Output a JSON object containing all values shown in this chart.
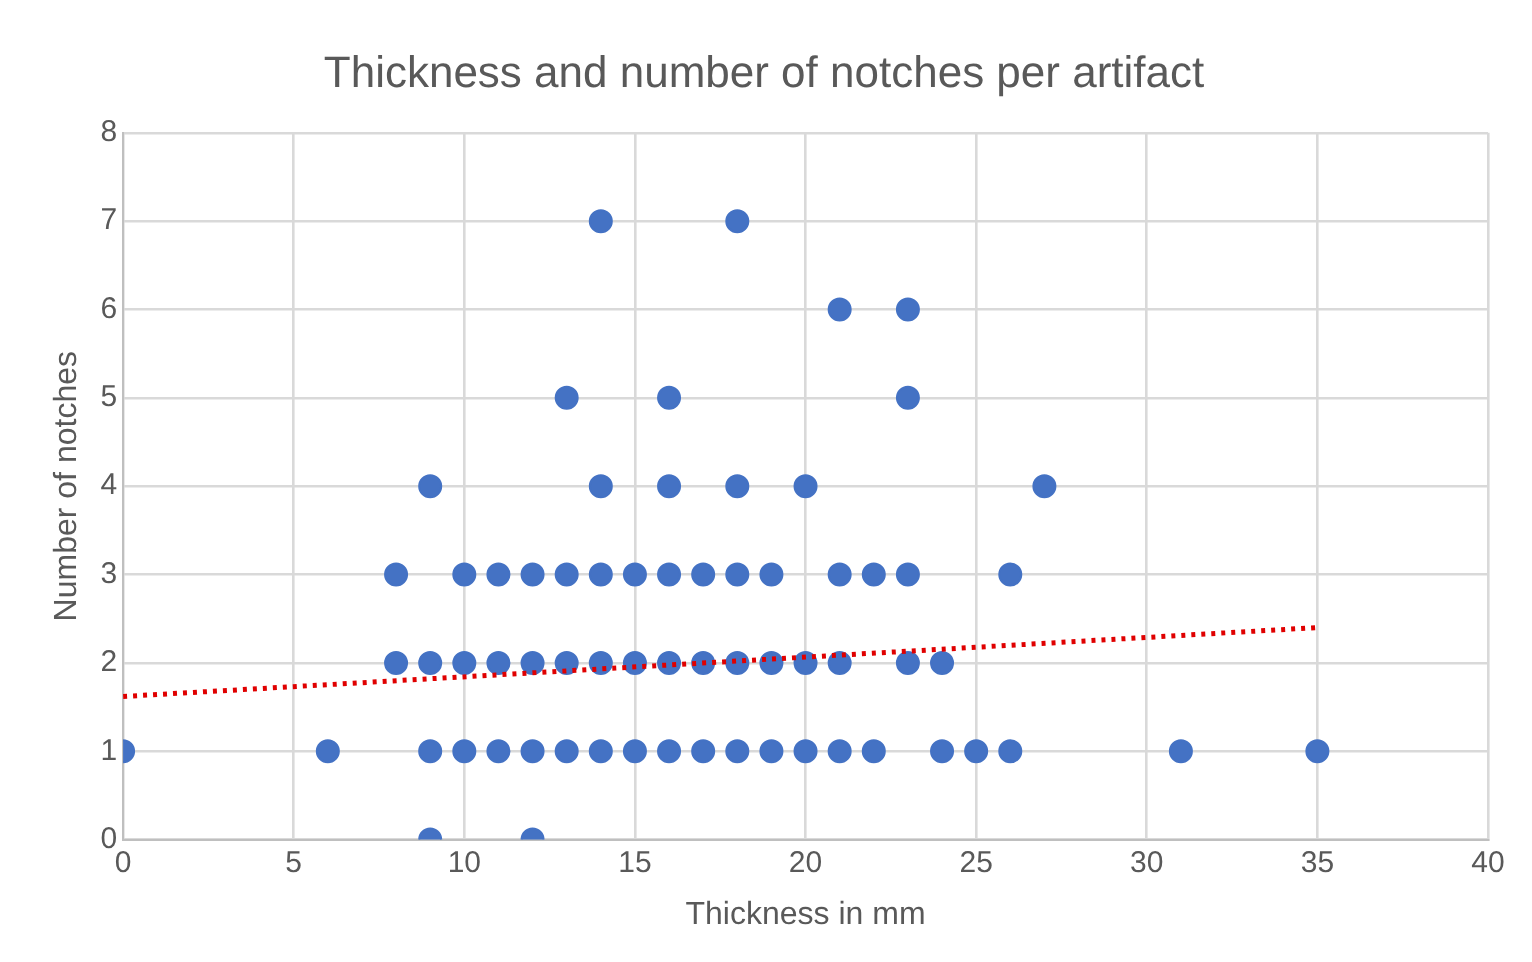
{
  "chart_data": {
    "type": "scatter",
    "title": "Thickness and number of notches per artifact",
    "xlabel": "Thickness in mm",
    "ylabel": "Number of notches",
    "xlim": [
      0,
      40
    ],
    "xticks": [
      0,
      5,
      10,
      15,
      20,
      25,
      30,
      35,
      40
    ],
    "ylim": [
      0,
      8
    ],
    "yticks": [
      0,
      1,
      2,
      3,
      4,
      5,
      6,
      7,
      8
    ],
    "grid": true,
    "legend": false,
    "marker": "circle",
    "series": [
      {
        "color": "#4472c4",
        "x": [
          9,
          12,
          0,
          6,
          9,
          10,
          11,
          12,
          13,
          14,
          15,
          16,
          17,
          18,
          19,
          20,
          21,
          22,
          24,
          25,
          26,
          31,
          35,
          8,
          9,
          10,
          11,
          12,
          13,
          14,
          15,
          16,
          17,
          18,
          19,
          20,
          21,
          23,
          24,
          8,
          10,
          11,
          12,
          13,
          14,
          15,
          16,
          17,
          18,
          19,
          21,
          22,
          23,
          26,
          9,
          14,
          16,
          18,
          20,
          27,
          13,
          16,
          23,
          21,
          23,
          14,
          18
        ],
        "values": [
          0,
          0,
          1,
          1,
          1,
          1,
          1,
          1,
          1,
          1,
          1,
          1,
          1,
          1,
          1,
          1,
          1,
          1,
          1,
          1,
          1,
          1,
          1,
          2,
          2,
          2,
          2,
          2,
          2,
          2,
          2,
          2,
          2,
          2,
          2,
          2,
          2,
          2,
          2,
          3,
          3,
          3,
          3,
          3,
          3,
          3,
          3,
          3,
          3,
          3,
          3,
          3,
          3,
          3,
          4,
          4,
          4,
          4,
          4,
          4,
          5,
          5,
          5,
          6,
          6,
          7,
          7
        ]
      },
      {
        "type": "line",
        "color": "#e00000",
        "line_style": "dotted",
        "marker": "none",
        "x": [
          0,
          35
        ],
        "values": [
          1.62,
          2.4
        ]
      }
    ]
  }
}
